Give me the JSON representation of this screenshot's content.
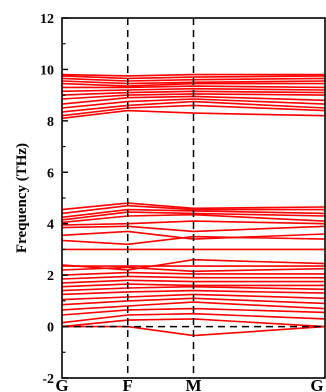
{
  "chart_data": {
    "type": "line",
    "ylabel": "Frequency (THz)",
    "ylim": [
      -2,
      12
    ],
    "y_ticks": [
      -2,
      0,
      2,
      4,
      6,
      8,
      10,
      12
    ],
    "x_path": [
      "G",
      "F",
      "M",
      "G"
    ],
    "x_positions": [
      0,
      1,
      2,
      4
    ],
    "grid": false,
    "legend": "none",
    "dashed_lines": {
      "vertical_at": [
        "F",
        "M"
      ],
      "horizontal_at": 0
    },
    "colors": {
      "bands": "#ff0000",
      "axes": "#000000",
      "guides": "#000000"
    },
    "bands": [
      {
        "values": [
          0.0,
          0.0,
          -0.35,
          0.0
        ]
      },
      {
        "values": [
          0.0,
          0.25,
          0.3,
          0.0
        ]
      },
      {
        "values": [
          0.15,
          0.45,
          0.5,
          0.3
        ]
      },
      {
        "values": [
          0.45,
          0.65,
          0.7,
          0.55
        ]
      },
      {
        "values": [
          0.65,
          0.8,
          0.95,
          0.7
        ]
      },
      {
        "values": [
          0.85,
          1.0,
          1.1,
          0.9
        ]
      },
      {
        "values": [
          1.05,
          1.15,
          1.25,
          1.1
        ]
      },
      {
        "values": [
          1.25,
          1.35,
          1.4,
          1.3
        ]
      },
      {
        "values": [
          1.4,
          1.5,
          1.55,
          1.45
        ]
      },
      {
        "values": [
          1.55,
          1.65,
          1.6,
          1.6
        ]
      },
      {
        "values": [
          1.7,
          1.8,
          1.75,
          1.75
        ]
      },
      {
        "values": [
          1.85,
          1.95,
          1.9,
          1.9
        ]
      },
      {
        "values": [
          2.0,
          2.1,
          2.05,
          2.05
        ]
      },
      {
        "values": [
          2.2,
          2.3,
          2.15,
          2.25
        ]
      },
      {
        "values": [
          2.35,
          2.35,
          2.35,
          2.35
        ]
      },
      {
        "values": [
          2.4,
          2.2,
          2.6,
          2.45
        ]
      },
      {
        "values": [
          3.0,
          3.0,
          3.0,
          3.0
        ]
      },
      {
        "values": [
          3.35,
          3.2,
          3.5,
          3.4
        ]
      },
      {
        "values": [
          3.55,
          3.7,
          3.4,
          3.6
        ]
      },
      {
        "values": [
          3.85,
          3.9,
          3.7,
          3.9
        ]
      },
      {
        "values": [
          3.95,
          4.0,
          4.1,
          4.0
        ]
      },
      {
        "values": [
          4.05,
          4.3,
          4.35,
          4.1
        ]
      },
      {
        "values": [
          4.15,
          4.45,
          4.4,
          4.3
        ]
      },
      {
        "values": [
          4.25,
          4.55,
          4.5,
          4.4
        ]
      },
      {
        "values": [
          4.4,
          4.7,
          4.55,
          4.55
        ]
      },
      {
        "values": [
          4.55,
          4.8,
          4.6,
          4.65
        ]
      },
      {
        "values": [
          8.1,
          8.4,
          8.3,
          8.2
        ]
      },
      {
        "values": [
          8.2,
          8.5,
          8.6,
          8.4
        ]
      },
      {
        "values": [
          8.35,
          8.6,
          8.75,
          8.5
        ]
      },
      {
        "values": [
          8.5,
          8.75,
          8.85,
          8.65
        ]
      },
      {
        "values": [
          8.65,
          8.9,
          8.95,
          8.8
        ]
      },
      {
        "values": [
          8.85,
          9.0,
          9.05,
          9.0
        ]
      },
      {
        "values": [
          9.0,
          9.1,
          9.15,
          9.1
        ]
      },
      {
        "values": [
          9.15,
          9.2,
          9.25,
          9.2
        ]
      },
      {
        "values": [
          9.3,
          9.3,
          9.35,
          9.3
        ]
      },
      {
        "values": [
          9.45,
          9.35,
          9.45,
          9.45
        ]
      },
      {
        "values": [
          9.55,
          9.45,
          9.5,
          9.55
        ]
      },
      {
        "values": [
          9.65,
          9.55,
          9.6,
          9.65
        ]
      },
      {
        "values": [
          9.75,
          9.65,
          9.7,
          9.75
        ]
      },
      {
        "values": [
          9.8,
          9.75,
          9.8,
          9.8
        ]
      }
    ]
  }
}
